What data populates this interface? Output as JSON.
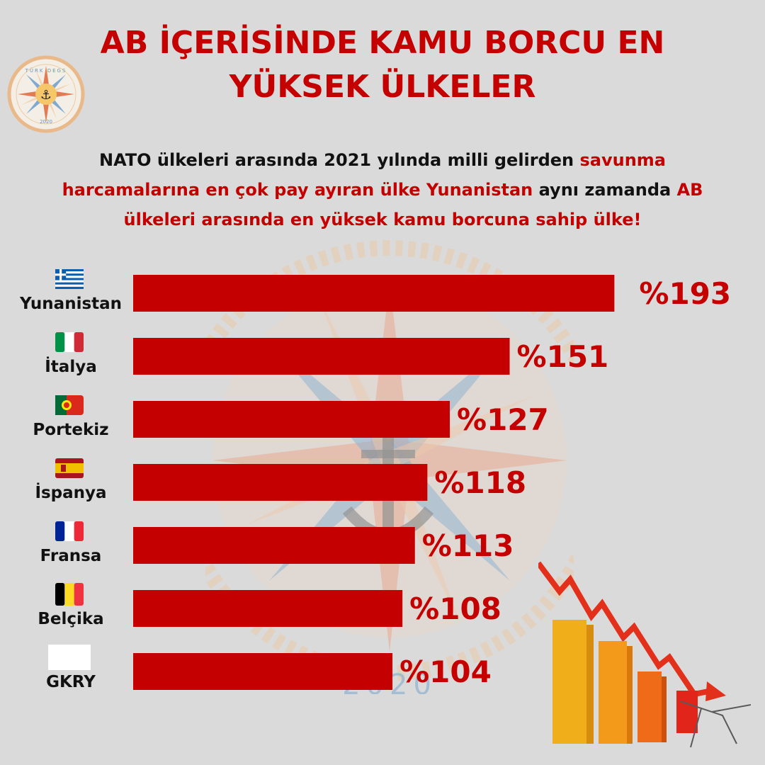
{
  "title_line1": "AB İÇERİSİNDE KAMU BORCU EN",
  "title_line2": "YÜKSEK ÜLKELER",
  "subtitle": {
    "p1": "NATO ülkeleri arasında 2021 yılında milli gelirden ",
    "p2": "savunma harcamalarına en çok pay ayıran ülke Yunanistan",
    "p3": " aynı zamanda ",
    "p4": "AB ülkeleri arasında en yüksek kamu borcuna sahip ülke!"
  },
  "logo": {
    "text_top": "TÜRK DEGS",
    "year": "2020"
  },
  "watermark": {
    "year": "2020"
  },
  "colors": {
    "bar": "#c40000",
    "label": "#c40000",
    "background": "#dadada"
  },
  "chart_data": {
    "type": "bar",
    "orientation": "horizontal",
    "categories": [
      "Yunanistan",
      "İtalya",
      "Portekiz",
      "İspanya",
      "Fransa",
      "Belçika",
      "GKRY"
    ],
    "values": [
      193,
      151,
      127,
      118,
      113,
      108,
      104
    ],
    "value_labels": [
      "%193",
      "%151",
      "%127",
      "%118",
      "%113",
      "%108",
      "%104"
    ],
    "flags": [
      "greece-flag",
      "italy-flag",
      "portugal-flag",
      "spain-flag",
      "france-flag",
      "belgium-flag",
      "cyprus-flag"
    ],
    "unit": "%",
    "grid": false,
    "legend": "none"
  }
}
